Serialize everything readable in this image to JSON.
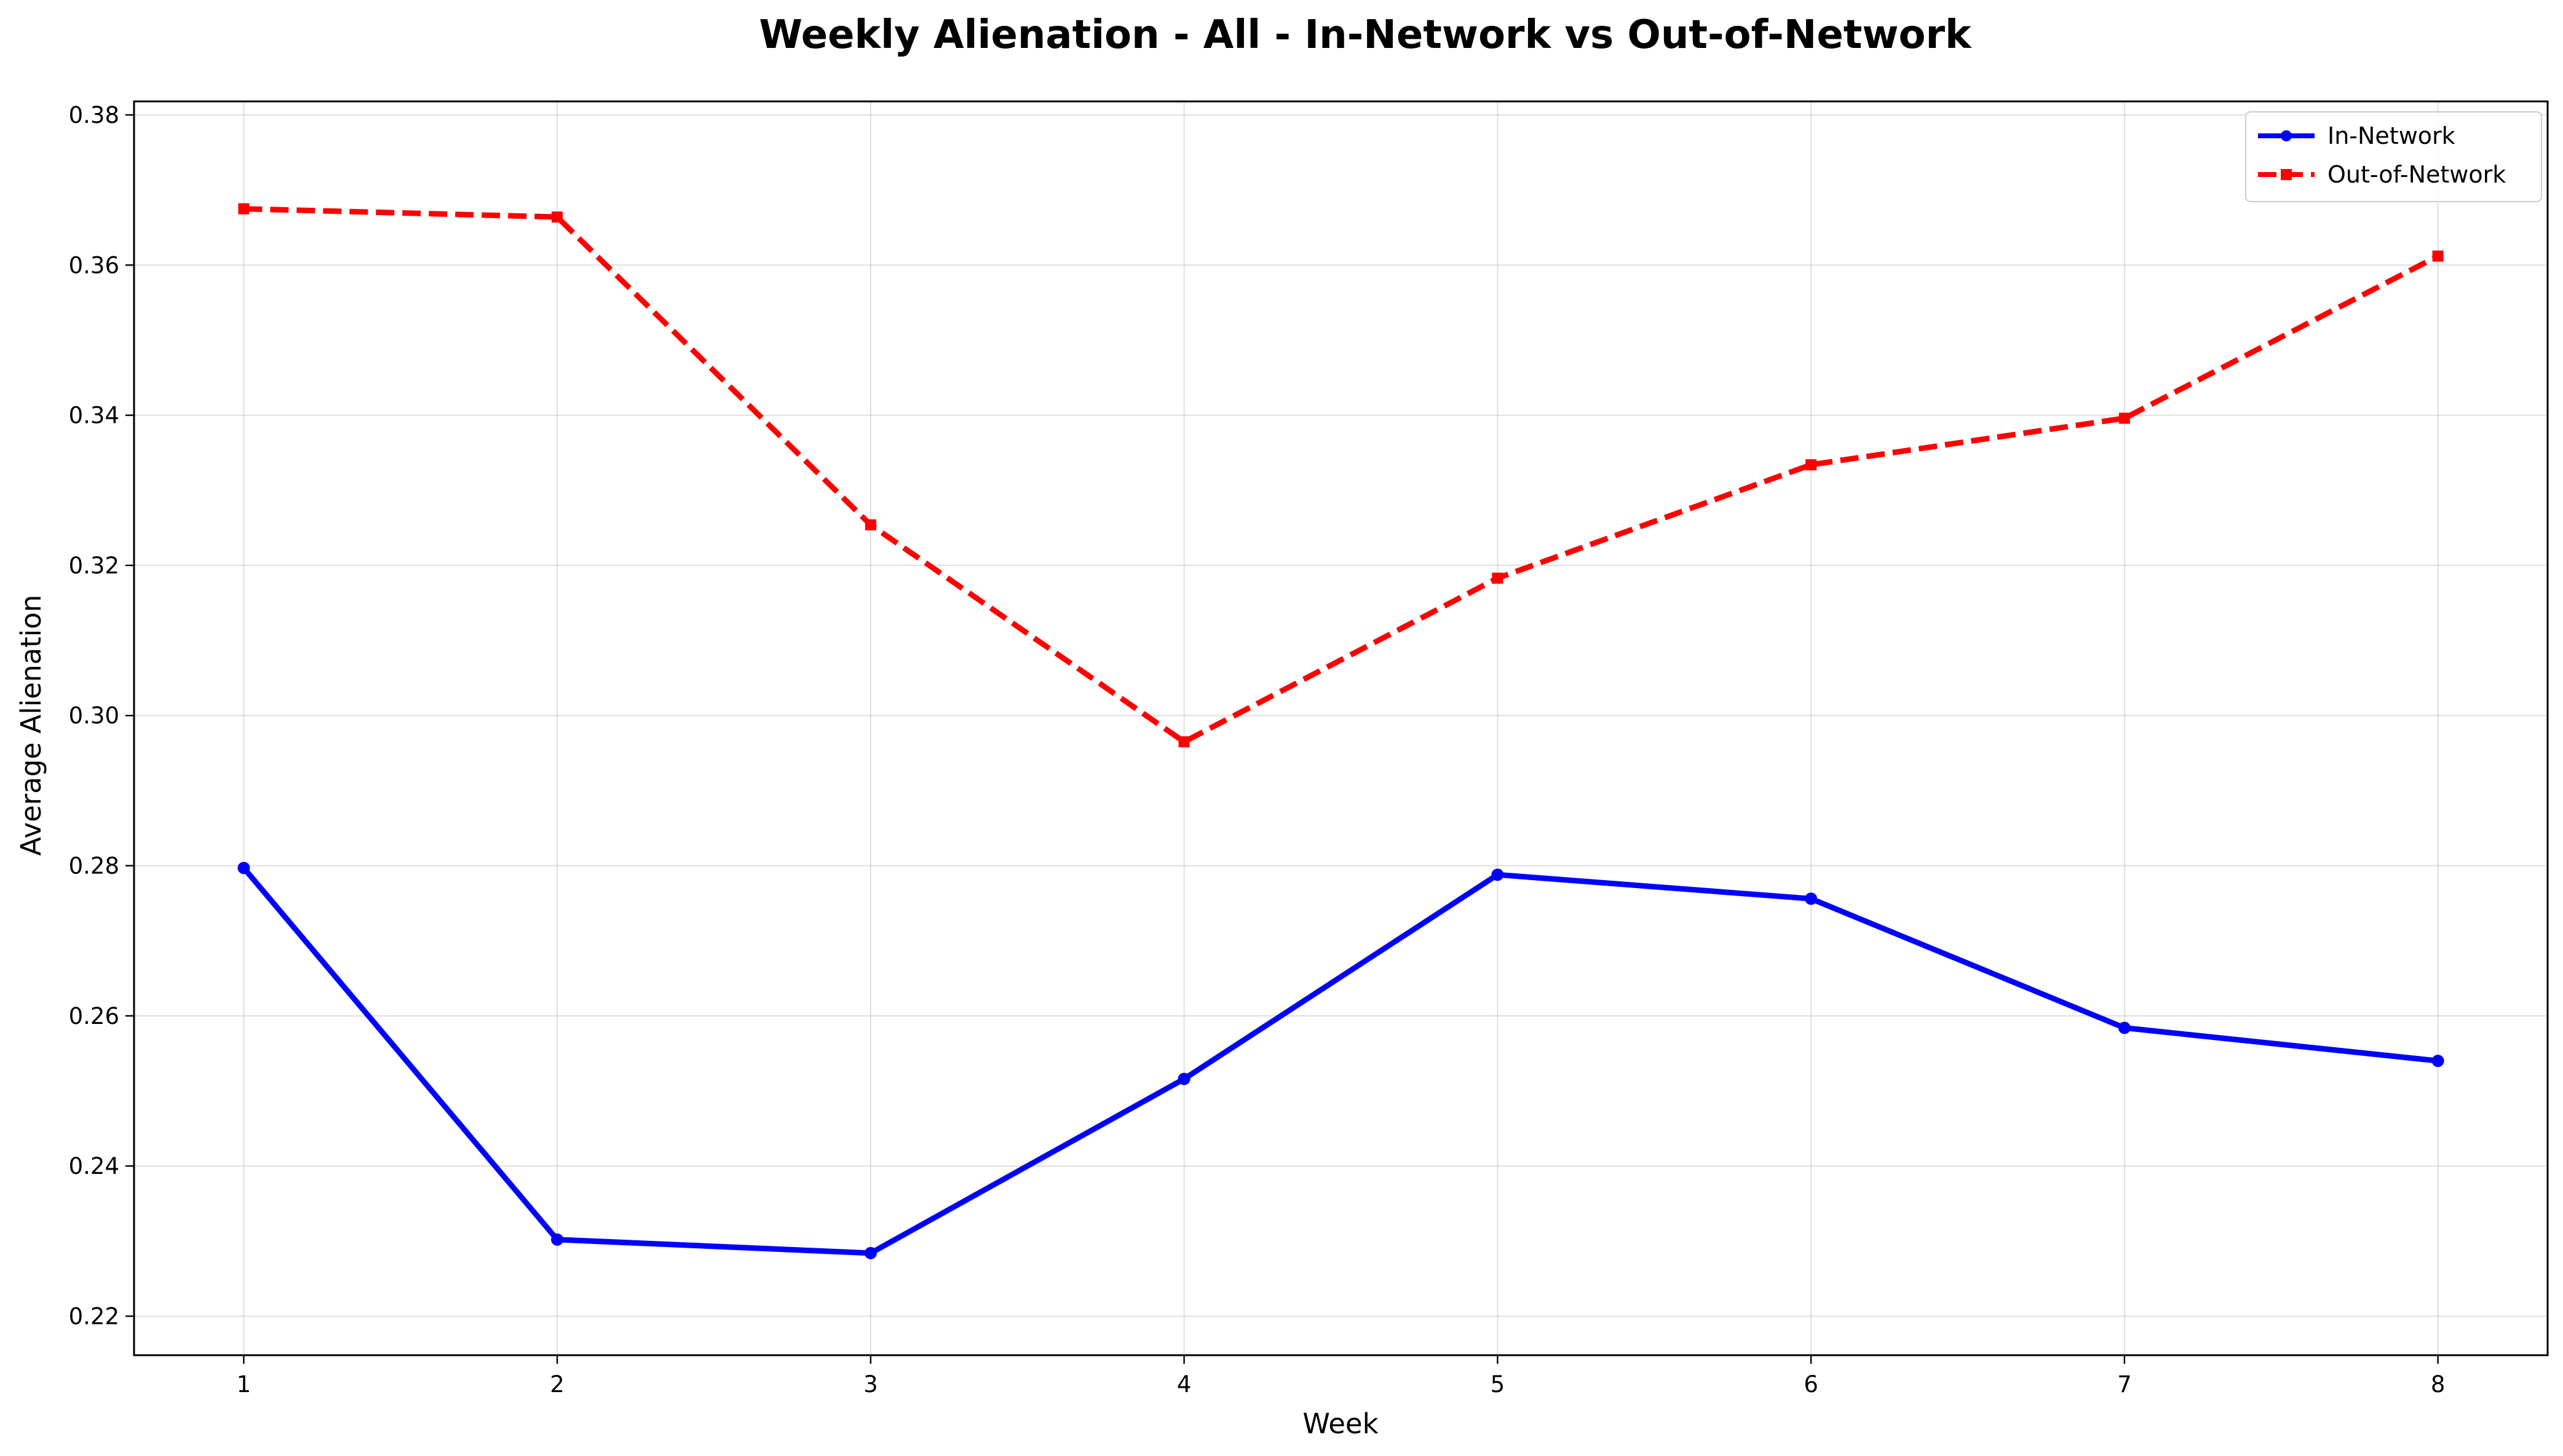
{
  "chart_data": {
    "type": "line",
    "title": "Weekly Alienation - All - In-Network vs Out-of-Network",
    "xlabel": "Week",
    "ylabel": "Average Alienation",
    "x": [
      1,
      2,
      3,
      4,
      5,
      6,
      7,
      8
    ],
    "xlim": [
      0.65,
      8.35
    ],
    "ylim": [
      0.2148,
      0.3818
    ],
    "yticks": [
      0.22,
      0.24,
      0.26,
      0.28,
      0.3,
      0.32,
      0.34,
      0.36,
      0.38
    ],
    "ytick_labels": [
      "0.22",
      "0.24",
      "0.26",
      "0.28",
      "0.30",
      "0.32",
      "0.34",
      "0.36",
      "0.38"
    ],
    "xtick_labels": [
      "1",
      "2",
      "3",
      "4",
      "5",
      "6",
      "7",
      "8"
    ],
    "grid": true,
    "legend_position": "top-right",
    "series": [
      {
        "name": "In-Network",
        "color": "#0000ff",
        "line_style": "solid",
        "marker": "circle",
        "values": [
          0.2797,
          0.2302,
          0.2284,
          0.2516,
          0.2788,
          0.2756,
          0.2584,
          0.254
        ]
      },
      {
        "name": "Out-of-Network",
        "color": "#ff0000",
        "line_style": "dashed",
        "marker": "square",
        "values": [
          0.3675,
          0.3664,
          0.3254,
          0.2965,
          0.3183,
          0.3334,
          0.3396,
          0.3612
        ]
      }
    ]
  }
}
